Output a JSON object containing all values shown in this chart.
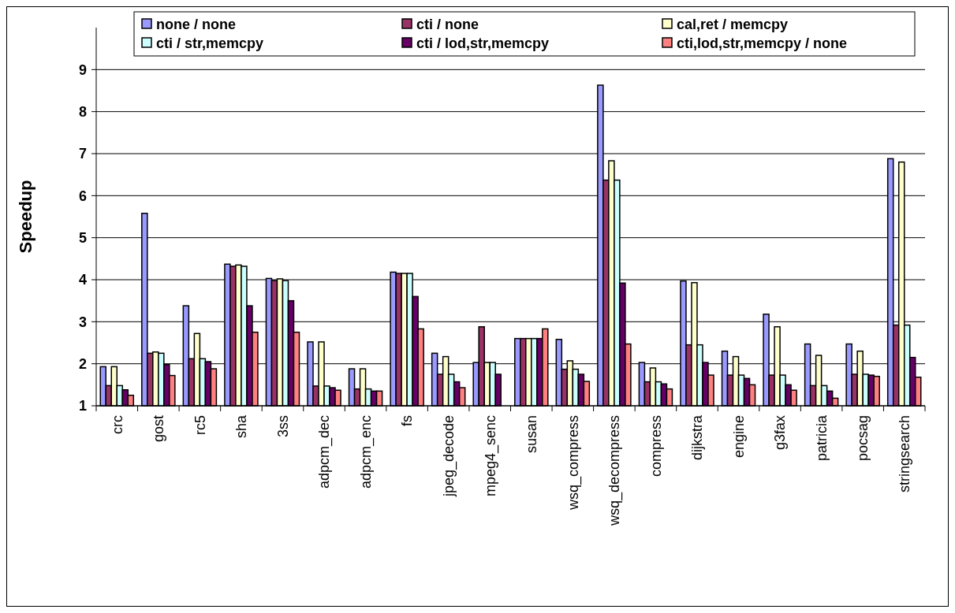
{
  "chart_data": {
    "type": "bar",
    "ylabel": "Speedup",
    "categories": [
      "crc",
      "gost",
      "rc5",
      "sha",
      "3ss",
      "adpcm_dec",
      "adpcm_enc",
      "fs",
      "jpeg_decode",
      "mpeg4_senc",
      "susan",
      "wsq_compress",
      "wsq_decompress",
      "compress",
      "dijkstra",
      "engine",
      "g3fax",
      "patricia",
      "pocsag",
      "stringsearch"
    ],
    "series": [
      {
        "name": "none / none",
        "color": "#9999ff",
        "values": [
          1.93,
          5.58,
          3.38,
          4.37,
          4.03,
          2.52,
          1.88,
          4.18,
          2.25,
          2.03,
          2.6,
          2.58,
          8.63,
          2.03,
          3.97,
          2.3,
          3.18,
          2.47,
          2.47,
          6.88
        ]
      },
      {
        "name": "cti / none",
        "color": "#993366",
        "values": [
          1.48,
          2.25,
          2.12,
          4.32,
          3.98,
          1.47,
          1.4,
          4.15,
          1.75,
          2.88,
          2.6,
          1.87,
          6.37,
          1.57,
          2.45,
          1.73,
          1.73,
          1.48,
          1.75,
          2.92
        ]
      },
      {
        "name": "cal,ret / memcpy",
        "color": "#ffffcc",
        "values": [
          1.93,
          2.28,
          2.72,
          4.35,
          4.02,
          2.52,
          1.88,
          4.15,
          2.17,
          2.03,
          2.6,
          2.07,
          6.83,
          1.9,
          3.93,
          2.17,
          2.88,
          2.2,
          2.3,
          6.8
        ]
      },
      {
        "name": "cti / str,memcpy",
        "color": "#ccffff",
        "values": [
          1.48,
          2.25,
          2.12,
          4.32,
          3.98,
          1.47,
          1.4,
          4.15,
          1.75,
          2.03,
          2.6,
          1.87,
          6.37,
          1.57,
          2.45,
          1.73,
          1.73,
          1.48,
          1.75,
          2.92
        ]
      },
      {
        "name": "cti / lod,str,memcpy",
        "color": "#660066",
        "values": [
          1.38,
          1.98,
          2.05,
          3.38,
          3.5,
          1.43,
          1.35,
          3.6,
          1.57,
          1.75,
          2.6,
          1.75,
          3.92,
          1.52,
          2.03,
          1.65,
          1.5,
          1.35,
          1.73,
          2.15
        ]
      },
      {
        "name": "cti,lod,str,memcpy / none",
        "color": "#ff8080",
        "values": [
          1.25,
          1.72,
          1.88,
          2.75,
          2.75,
          1.37,
          1.35,
          2.83,
          1.43,
          null,
          2.83,
          1.58,
          2.47,
          1.4,
          1.73,
          1.5,
          1.37,
          1.18,
          1.7,
          1.68
        ]
      }
    ],
    "ylim": [
      1,
      10
    ],
    "yticks": [
      1,
      2,
      3,
      4,
      5,
      6,
      7,
      8,
      9
    ],
    "grid": "y",
    "legend": "top"
  }
}
